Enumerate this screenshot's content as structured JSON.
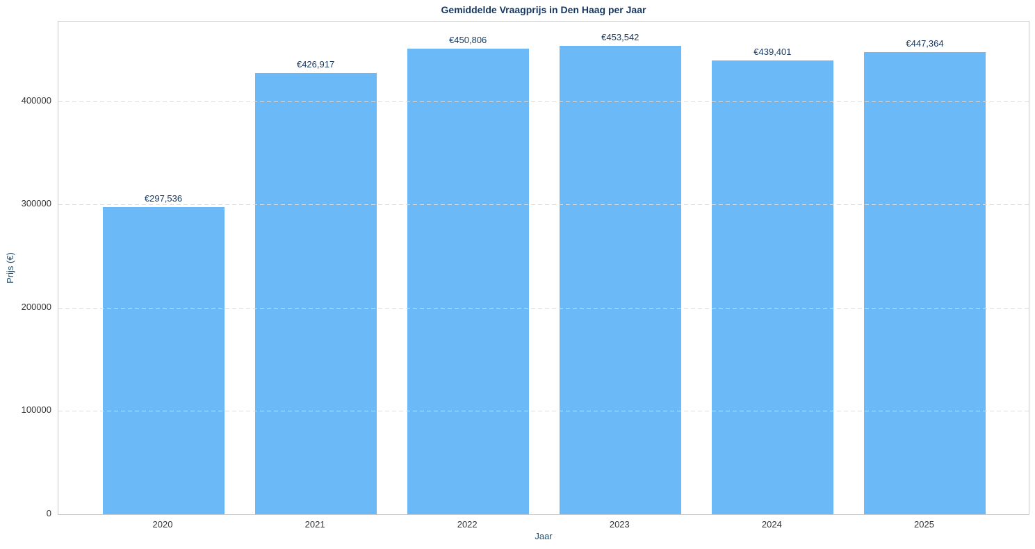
{
  "chart_data": {
    "type": "bar",
    "title": "Gemiddelde Vraagprijs in Den Haag per Jaar",
    "xlabel": "Jaar",
    "ylabel": "Prijs (€)",
    "categories": [
      "2020",
      "2021",
      "2022",
      "2023",
      "2024",
      "2025"
    ],
    "values": [
      297536,
      426917,
      450806,
      453542,
      439401,
      447364
    ],
    "value_labels": [
      "€297,536",
      "€426,917",
      "€450,806",
      "€453,542",
      "€439,401",
      "€447,364"
    ],
    "yticks": [
      0,
      100000,
      200000,
      300000,
      400000
    ],
    "ylim": [
      0,
      477000
    ],
    "grid": "horizontal-dashed-above-bars",
    "legend": "none",
    "colors": {
      "bar": "#6CB9F8",
      "title": "#17375E",
      "axis_label": "#1F4E6E",
      "value_label": "#17375E",
      "tick_label": "#333333",
      "gridline": "#dcdcdc",
      "spine": "#c9c9c9",
      "background": "#ffffff"
    }
  }
}
